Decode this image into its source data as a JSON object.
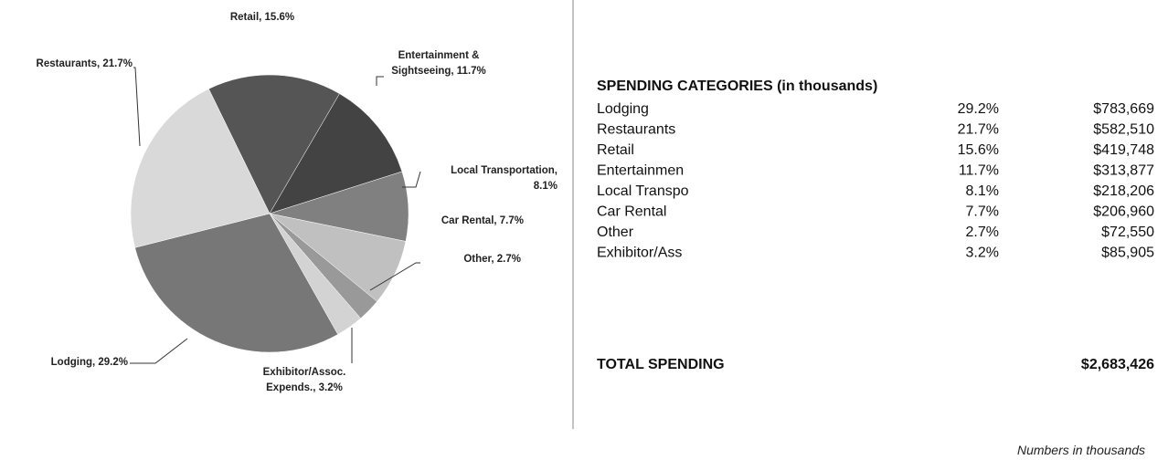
{
  "chart_data": {
    "type": "pie",
    "categories": [
      [
        "Retail, 15.6%"
      ],
      [
        "Entertainment &",
        "Sightseeing, 11.7%"
      ],
      [
        "Local Transportation,",
        "8.1%"
      ],
      [
        "Car Rental, 7.7%"
      ],
      [
        "Other, 2.7%"
      ],
      [
        "Exhibitor/Assoc.",
        "Expends., 3.2%"
      ],
      [
        "Lodging, 29.2%"
      ],
      [
        "Restaurants, 21.7%"
      ]
    ],
    "values": [
      15.6,
      11.7,
      8.1,
      7.7,
      2.7,
      3.2,
      29.2,
      21.7
    ],
    "colors": [
      "#555555",
      "#434343",
      "#808080",
      "#c0c0c0",
      "#999999",
      "#d3d3d3",
      "#777777",
      "#d9d9d9"
    ]
  },
  "table": {
    "title": "SPENDING CATEGORIES (in thousands)",
    "rows": [
      [
        "Lodging",
        "29.2%",
        "$783,669"
      ],
      [
        "Restaurants",
        "21.7%",
        "$582,510"
      ],
      [
        "Retail",
        "15.6%",
        "$419,748"
      ],
      [
        "Entertainmen",
        "11.7%",
        "$313,877"
      ],
      [
        "Local Transpo",
        "8.1%",
        "$218,206"
      ],
      [
        "Car Rental",
        "7.7%",
        "$206,960"
      ],
      [
        "Other",
        "2.7%",
        "$72,550"
      ],
      [
        "Exhibitor/Ass",
        "3.2%",
        "$85,905"
      ]
    ],
    "total": [
      "TOTAL SPENDING",
      "$2,683,426"
    ]
  },
  "note": "Numbers in thousands"
}
